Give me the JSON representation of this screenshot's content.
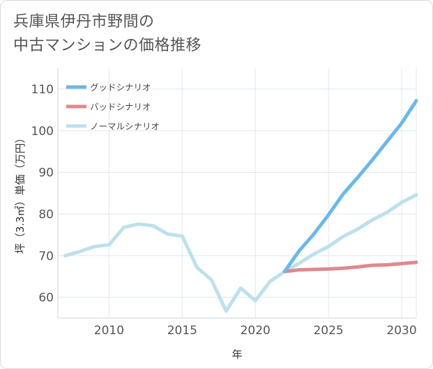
{
  "title_lines": [
    "兵庫県伊丹市野間の",
    "中古マンションの価格推移"
  ],
  "chart_data": {
    "type": "line",
    "xlabel": "年",
    "ylabel": "坪（3.3㎡）単価（万円）",
    "xlim": [
      2006.5,
      2031
    ],
    "ylim": [
      55,
      115
    ],
    "x_ticks": [
      2010,
      2015,
      2020,
      2025,
      2030
    ],
    "y_ticks": [
      60,
      70,
      80,
      90,
      100,
      110
    ],
    "grid": true,
    "legend_position": "top-left",
    "series": [
      {
        "name": "グッドシナリオ",
        "color": "#6cb8e8",
        "x": [
          2022,
          2023,
          2024,
          2025,
          2026,
          2027,
          2028,
          2029,
          2030,
          2031
        ],
        "y": [
          66.2,
          71.2,
          75.2,
          79.8,
          84.8,
          88.8,
          93.0,
          97.4,
          101.8,
          107.2
        ]
      },
      {
        "name": "バッドシナリオ",
        "color": "#e0888f",
        "x": [
          2022,
          2023,
          2024,
          2025,
          2026,
          2027,
          2028,
          2029,
          2030,
          2031
        ],
        "y": [
          66.2,
          66.6,
          66.7,
          66.8,
          67.0,
          67.3,
          67.7,
          67.8,
          68.1,
          68.4
        ]
      },
      {
        "name": "ノーマルシナリオ",
        "color": "#bde0ec",
        "x": [
          2007,
          2008,
          2009,
          2010,
          2011,
          2012,
          2013,
          2014,
          2015,
          2016,
          2017,
          2018,
          2019,
          2020,
          2021,
          2022,
          2023,
          2024,
          2025,
          2026,
          2027,
          2028,
          2029,
          2030,
          2031
        ],
        "y": [
          70.0,
          71.0,
          72.2,
          72.6,
          76.8,
          77.6,
          77.2,
          75.2,
          74.7,
          67.2,
          64.2,
          56.7,
          62.2,
          59.2,
          63.8,
          66.2,
          68.2,
          70.4,
          72.2,
          74.6,
          76.4,
          78.6,
          80.4,
          82.8,
          84.6
        ]
      }
    ]
  }
}
